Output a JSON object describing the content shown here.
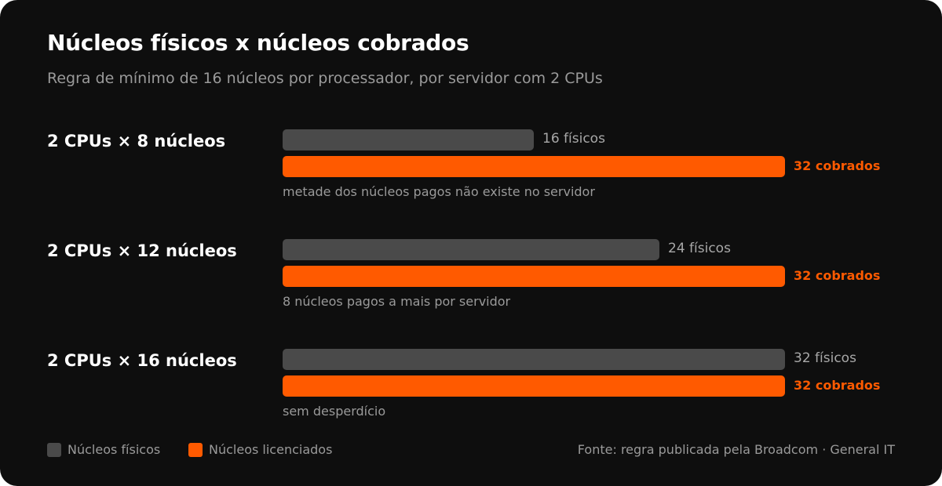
{
  "colors": {
    "physical": "#4a4a4a",
    "licensed": "#ff5a00",
    "background": "#0e0e0e"
  },
  "chart_data": {
    "type": "bar",
    "orientation": "horizontal",
    "title": "Núcleos físicos x núcleos cobrados",
    "subtitle": "Regra de mínimo de 16 núcleos por processador, por servidor com 2 CPUs",
    "categories": [
      "2 CPUs × 8 núcleos",
      "2 CPUs × 12 núcleos",
      "2 CPUs × 16 núcleos"
    ],
    "xlim": [
      0,
      32
    ],
    "grid": false,
    "legend_position": "bottom-left",
    "series": [
      {
        "name": "Núcleos físicos",
        "values": [
          16,
          24,
          32
        ],
        "labels": [
          "16 físicos",
          "24 físicos",
          "32 físicos"
        ]
      },
      {
        "name": "Núcleos licenciados",
        "values": [
          32,
          32,
          32
        ],
        "labels": [
          "32 cobrados",
          "32 cobrados",
          "32 cobrados"
        ]
      }
    ],
    "annotations": [
      "metade dos núcleos pagos não existe no servidor",
      "8 núcleos pagos a mais por servidor",
      "sem desperdício"
    ],
    "source": "Fonte: regra publicada pela Broadcom · General IT"
  }
}
